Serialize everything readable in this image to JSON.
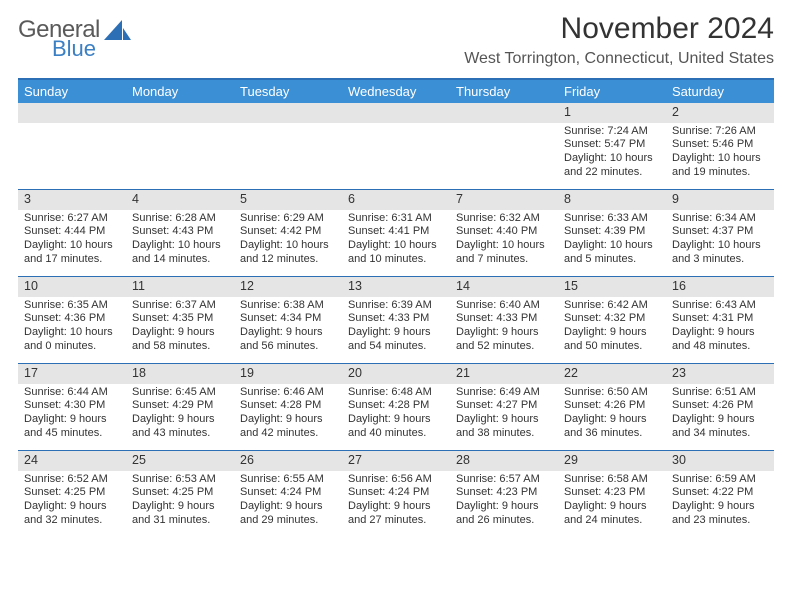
{
  "logo": {
    "line1": "General",
    "line2": "Blue",
    "text_color": "#5a5a5a",
    "accent_color": "#3b7fc4"
  },
  "title": "November 2024",
  "location": "West Torrington, Connecticut, United States",
  "colors": {
    "header_bg": "#3b8fd4",
    "header_text": "#ffffff",
    "border": "#2d6fb5",
    "daynum_bg": "#e5e5e5",
    "body_text": "#333333",
    "page_bg": "#ffffff"
  },
  "typography": {
    "title_fontsize": 30,
    "location_fontsize": 16,
    "dayheader_fontsize": 13,
    "daynum_fontsize": 12.5,
    "cell_fontsize": 11
  },
  "day_headers": [
    "Sunday",
    "Monday",
    "Tuesday",
    "Wednesday",
    "Thursday",
    "Friday",
    "Saturday"
  ],
  "weeks": [
    [
      {
        "n": "",
        "sunrise": "",
        "sunset": "",
        "daylight": ""
      },
      {
        "n": "",
        "sunrise": "",
        "sunset": "",
        "daylight": ""
      },
      {
        "n": "",
        "sunrise": "",
        "sunset": "",
        "daylight": ""
      },
      {
        "n": "",
        "sunrise": "",
        "sunset": "",
        "daylight": ""
      },
      {
        "n": "",
        "sunrise": "",
        "sunset": "",
        "daylight": ""
      },
      {
        "n": "1",
        "sunrise": "Sunrise: 7:24 AM",
        "sunset": "Sunset: 5:47 PM",
        "daylight": "Daylight: 10 hours and 22 minutes."
      },
      {
        "n": "2",
        "sunrise": "Sunrise: 7:26 AM",
        "sunset": "Sunset: 5:46 PM",
        "daylight": "Daylight: 10 hours and 19 minutes."
      }
    ],
    [
      {
        "n": "3",
        "sunrise": "Sunrise: 6:27 AM",
        "sunset": "Sunset: 4:44 PM",
        "daylight": "Daylight: 10 hours and 17 minutes."
      },
      {
        "n": "4",
        "sunrise": "Sunrise: 6:28 AM",
        "sunset": "Sunset: 4:43 PM",
        "daylight": "Daylight: 10 hours and 14 minutes."
      },
      {
        "n": "5",
        "sunrise": "Sunrise: 6:29 AM",
        "sunset": "Sunset: 4:42 PM",
        "daylight": "Daylight: 10 hours and 12 minutes."
      },
      {
        "n": "6",
        "sunrise": "Sunrise: 6:31 AM",
        "sunset": "Sunset: 4:41 PM",
        "daylight": "Daylight: 10 hours and 10 minutes."
      },
      {
        "n": "7",
        "sunrise": "Sunrise: 6:32 AM",
        "sunset": "Sunset: 4:40 PM",
        "daylight": "Daylight: 10 hours and 7 minutes."
      },
      {
        "n": "8",
        "sunrise": "Sunrise: 6:33 AM",
        "sunset": "Sunset: 4:39 PM",
        "daylight": "Daylight: 10 hours and 5 minutes."
      },
      {
        "n": "9",
        "sunrise": "Sunrise: 6:34 AM",
        "sunset": "Sunset: 4:37 PM",
        "daylight": "Daylight: 10 hours and 3 minutes."
      }
    ],
    [
      {
        "n": "10",
        "sunrise": "Sunrise: 6:35 AM",
        "sunset": "Sunset: 4:36 PM",
        "daylight": "Daylight: 10 hours and 0 minutes."
      },
      {
        "n": "11",
        "sunrise": "Sunrise: 6:37 AM",
        "sunset": "Sunset: 4:35 PM",
        "daylight": "Daylight: 9 hours and 58 minutes."
      },
      {
        "n": "12",
        "sunrise": "Sunrise: 6:38 AM",
        "sunset": "Sunset: 4:34 PM",
        "daylight": "Daylight: 9 hours and 56 minutes."
      },
      {
        "n": "13",
        "sunrise": "Sunrise: 6:39 AM",
        "sunset": "Sunset: 4:33 PM",
        "daylight": "Daylight: 9 hours and 54 minutes."
      },
      {
        "n": "14",
        "sunrise": "Sunrise: 6:40 AM",
        "sunset": "Sunset: 4:33 PM",
        "daylight": "Daylight: 9 hours and 52 minutes."
      },
      {
        "n": "15",
        "sunrise": "Sunrise: 6:42 AM",
        "sunset": "Sunset: 4:32 PM",
        "daylight": "Daylight: 9 hours and 50 minutes."
      },
      {
        "n": "16",
        "sunrise": "Sunrise: 6:43 AM",
        "sunset": "Sunset: 4:31 PM",
        "daylight": "Daylight: 9 hours and 48 minutes."
      }
    ],
    [
      {
        "n": "17",
        "sunrise": "Sunrise: 6:44 AM",
        "sunset": "Sunset: 4:30 PM",
        "daylight": "Daylight: 9 hours and 45 minutes."
      },
      {
        "n": "18",
        "sunrise": "Sunrise: 6:45 AM",
        "sunset": "Sunset: 4:29 PM",
        "daylight": "Daylight: 9 hours and 43 minutes."
      },
      {
        "n": "19",
        "sunrise": "Sunrise: 6:46 AM",
        "sunset": "Sunset: 4:28 PM",
        "daylight": "Daylight: 9 hours and 42 minutes."
      },
      {
        "n": "20",
        "sunrise": "Sunrise: 6:48 AM",
        "sunset": "Sunset: 4:28 PM",
        "daylight": "Daylight: 9 hours and 40 minutes."
      },
      {
        "n": "21",
        "sunrise": "Sunrise: 6:49 AM",
        "sunset": "Sunset: 4:27 PM",
        "daylight": "Daylight: 9 hours and 38 minutes."
      },
      {
        "n": "22",
        "sunrise": "Sunrise: 6:50 AM",
        "sunset": "Sunset: 4:26 PM",
        "daylight": "Daylight: 9 hours and 36 minutes."
      },
      {
        "n": "23",
        "sunrise": "Sunrise: 6:51 AM",
        "sunset": "Sunset: 4:26 PM",
        "daylight": "Daylight: 9 hours and 34 minutes."
      }
    ],
    [
      {
        "n": "24",
        "sunrise": "Sunrise: 6:52 AM",
        "sunset": "Sunset: 4:25 PM",
        "daylight": "Daylight: 9 hours and 32 minutes."
      },
      {
        "n": "25",
        "sunrise": "Sunrise: 6:53 AM",
        "sunset": "Sunset: 4:25 PM",
        "daylight": "Daylight: 9 hours and 31 minutes."
      },
      {
        "n": "26",
        "sunrise": "Sunrise: 6:55 AM",
        "sunset": "Sunset: 4:24 PM",
        "daylight": "Daylight: 9 hours and 29 minutes."
      },
      {
        "n": "27",
        "sunrise": "Sunrise: 6:56 AM",
        "sunset": "Sunset: 4:24 PM",
        "daylight": "Daylight: 9 hours and 27 minutes."
      },
      {
        "n": "28",
        "sunrise": "Sunrise: 6:57 AM",
        "sunset": "Sunset: 4:23 PM",
        "daylight": "Daylight: 9 hours and 26 minutes."
      },
      {
        "n": "29",
        "sunrise": "Sunrise: 6:58 AM",
        "sunset": "Sunset: 4:23 PM",
        "daylight": "Daylight: 9 hours and 24 minutes."
      },
      {
        "n": "30",
        "sunrise": "Sunrise: 6:59 AM",
        "sunset": "Sunset: 4:22 PM",
        "daylight": "Daylight: 9 hours and 23 minutes."
      }
    ]
  ]
}
